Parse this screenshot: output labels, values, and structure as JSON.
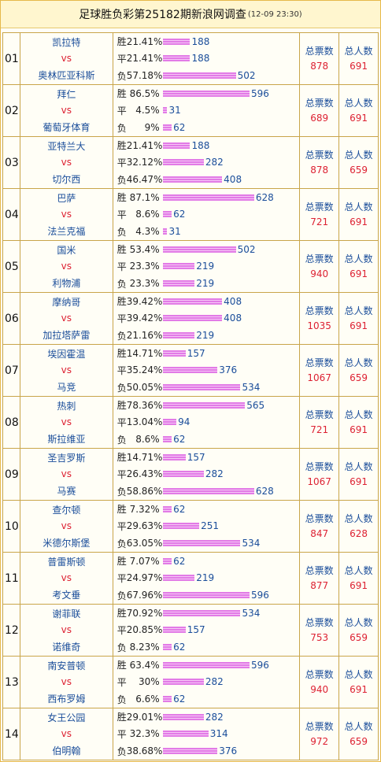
{
  "header": {
    "title": "足球胜负彩第25182期新浪网调查",
    "time": "(12-09 23:30)"
  },
  "rows": [
    {
      "no": "01",
      "home": "凯拉特",
      "vs": "vs",
      "away": "奥林匹亚科斯",
      "options": [
        {
          "label": "胜",
          "pct": "21.41%",
          "count": 188
        },
        {
          "label": "平",
          "pct": "21.41%",
          "count": 188
        },
        {
          "label": "负",
          "pct": "57.18%",
          "count": 502
        }
      ],
      "votes_label": "总票数",
      "votes": 878,
      "people_label": "总人数",
      "people": 691
    },
    {
      "no": "02",
      "home": "拜仁",
      "vs": "vs",
      "away": "葡萄牙体育",
      "options": [
        {
          "label": "胜",
          "pct": "86.5%",
          "count": 596
        },
        {
          "label": "平",
          "pct": "4.5%",
          "count": 31
        },
        {
          "label": "负",
          "pct": "9%",
          "count": 62
        }
      ],
      "votes_label": "总票数",
      "votes": 689,
      "people_label": "总人数",
      "people": 691
    },
    {
      "no": "03",
      "home": "亚特兰大",
      "vs": "vs",
      "away": "切尔西",
      "options": [
        {
          "label": "胜",
          "pct": "21.41%",
          "count": 188
        },
        {
          "label": "平",
          "pct": "32.12%",
          "count": 282
        },
        {
          "label": "负",
          "pct": "46.47%",
          "count": 408
        }
      ],
      "votes_label": "总票数",
      "votes": 878,
      "people_label": "总人数",
      "people": 659
    },
    {
      "no": "04",
      "home": "巴萨",
      "vs": "vs",
      "away": "法兰克福",
      "options": [
        {
          "label": "胜",
          "pct": "87.1%",
          "count": 628
        },
        {
          "label": "平",
          "pct": "8.6%",
          "count": 62
        },
        {
          "label": "负",
          "pct": "4.3%",
          "count": 31
        }
      ],
      "votes_label": "总票数",
      "votes": 721,
      "people_label": "总人数",
      "people": 691
    },
    {
      "no": "05",
      "home": "国米",
      "vs": "vs",
      "away": "利物浦",
      "options": [
        {
          "label": "胜",
          "pct": "53.4%",
          "count": 502
        },
        {
          "label": "平",
          "pct": "23.3%",
          "count": 219
        },
        {
          "label": "负",
          "pct": "23.3%",
          "count": 219
        }
      ],
      "votes_label": "总票数",
      "votes": 940,
      "people_label": "总人数",
      "people": 691
    },
    {
      "no": "06",
      "home": "摩纳哥",
      "vs": "vs",
      "away": "加拉塔萨雷",
      "options": [
        {
          "label": "胜",
          "pct": "39.42%",
          "count": 408
        },
        {
          "label": "平",
          "pct": "39.42%",
          "count": 408
        },
        {
          "label": "负",
          "pct": "21.16%",
          "count": 219
        }
      ],
      "votes_label": "总票数",
      "votes": 1035,
      "people_label": "总人数",
      "people": 691
    },
    {
      "no": "07",
      "home": "埃因霍温",
      "vs": "vs",
      "away": "马竞",
      "options": [
        {
          "label": "胜",
          "pct": "14.71%",
          "count": 157
        },
        {
          "label": "平",
          "pct": "35.24%",
          "count": 376
        },
        {
          "label": "负",
          "pct": "50.05%",
          "count": 534
        }
      ],
      "votes_label": "总票数",
      "votes": 1067,
      "people_label": "总人数",
      "people": 659
    },
    {
      "no": "08",
      "home": "热刺",
      "vs": "vs",
      "away": "斯拉维亚",
      "options": [
        {
          "label": "胜",
          "pct": "78.36%",
          "count": 565
        },
        {
          "label": "平",
          "pct": "13.04%",
          "count": 94
        },
        {
          "label": "负",
          "pct": "8.6%",
          "count": 62
        }
      ],
      "votes_label": "总票数",
      "votes": 721,
      "people_label": "总人数",
      "people": 691
    },
    {
      "no": "09",
      "home": "圣吉罗斯",
      "vs": "vs",
      "away": "马赛",
      "options": [
        {
          "label": "胜",
          "pct": "14.71%",
          "count": 157
        },
        {
          "label": "平",
          "pct": "26.43%",
          "count": 282
        },
        {
          "label": "负",
          "pct": "58.86%",
          "count": 628
        }
      ],
      "votes_label": "总票数",
      "votes": 1067,
      "people_label": "总人数",
      "people": 691
    },
    {
      "no": "10",
      "home": "查尔顿",
      "vs": "vs",
      "away": "米德尔斯堡",
      "options": [
        {
          "label": "胜",
          "pct": "7.32%",
          "count": 62
        },
        {
          "label": "平",
          "pct": "29.63%",
          "count": 251
        },
        {
          "label": "负",
          "pct": "63.05%",
          "count": 534
        }
      ],
      "votes_label": "总票数",
      "votes": 847,
      "people_label": "总人数",
      "people": 628
    },
    {
      "no": "11",
      "home": "普雷斯顿",
      "vs": "vs",
      "away": "考文垂",
      "options": [
        {
          "label": "胜",
          "pct": "7.07%",
          "count": 62
        },
        {
          "label": "平",
          "pct": "24.97%",
          "count": 219
        },
        {
          "label": "负",
          "pct": "67.96%",
          "count": 596
        }
      ],
      "votes_label": "总票数",
      "votes": 877,
      "people_label": "总人数",
      "people": 691
    },
    {
      "no": "12",
      "home": "谢菲联",
      "vs": "vs",
      "away": "诺维奇",
      "options": [
        {
          "label": "胜",
          "pct": "70.92%",
          "count": 534
        },
        {
          "label": "平",
          "pct": "20.85%",
          "count": 157
        },
        {
          "label": "负",
          "pct": "8.23%",
          "count": 62
        }
      ],
      "votes_label": "总票数",
      "votes": 753,
      "people_label": "总人数",
      "people": 659
    },
    {
      "no": "13",
      "home": "南安普顿",
      "vs": "vs",
      "away": "西布罗姆",
      "options": [
        {
          "label": "胜",
          "pct": "63.4%",
          "count": 596
        },
        {
          "label": "平",
          "pct": "30%",
          "count": 282
        },
        {
          "label": "负",
          "pct": "6.6%",
          "count": 62
        }
      ],
      "votes_label": "总票数",
      "votes": 940,
      "people_label": "总人数",
      "people": 691
    },
    {
      "no": "14",
      "home": "女王公园",
      "vs": "vs",
      "away": "伯明翰",
      "options": [
        {
          "label": "胜",
          "pct": "29.01%",
          "count": 282
        },
        {
          "label": "平",
          "pct": "32.3%",
          "count": 314
        },
        {
          "label": "负",
          "pct": "38.68%",
          "count": 376
        }
      ],
      "votes_label": "总票数",
      "votes": 972,
      "people_label": "总人数",
      "people": 659
    }
  ]
}
